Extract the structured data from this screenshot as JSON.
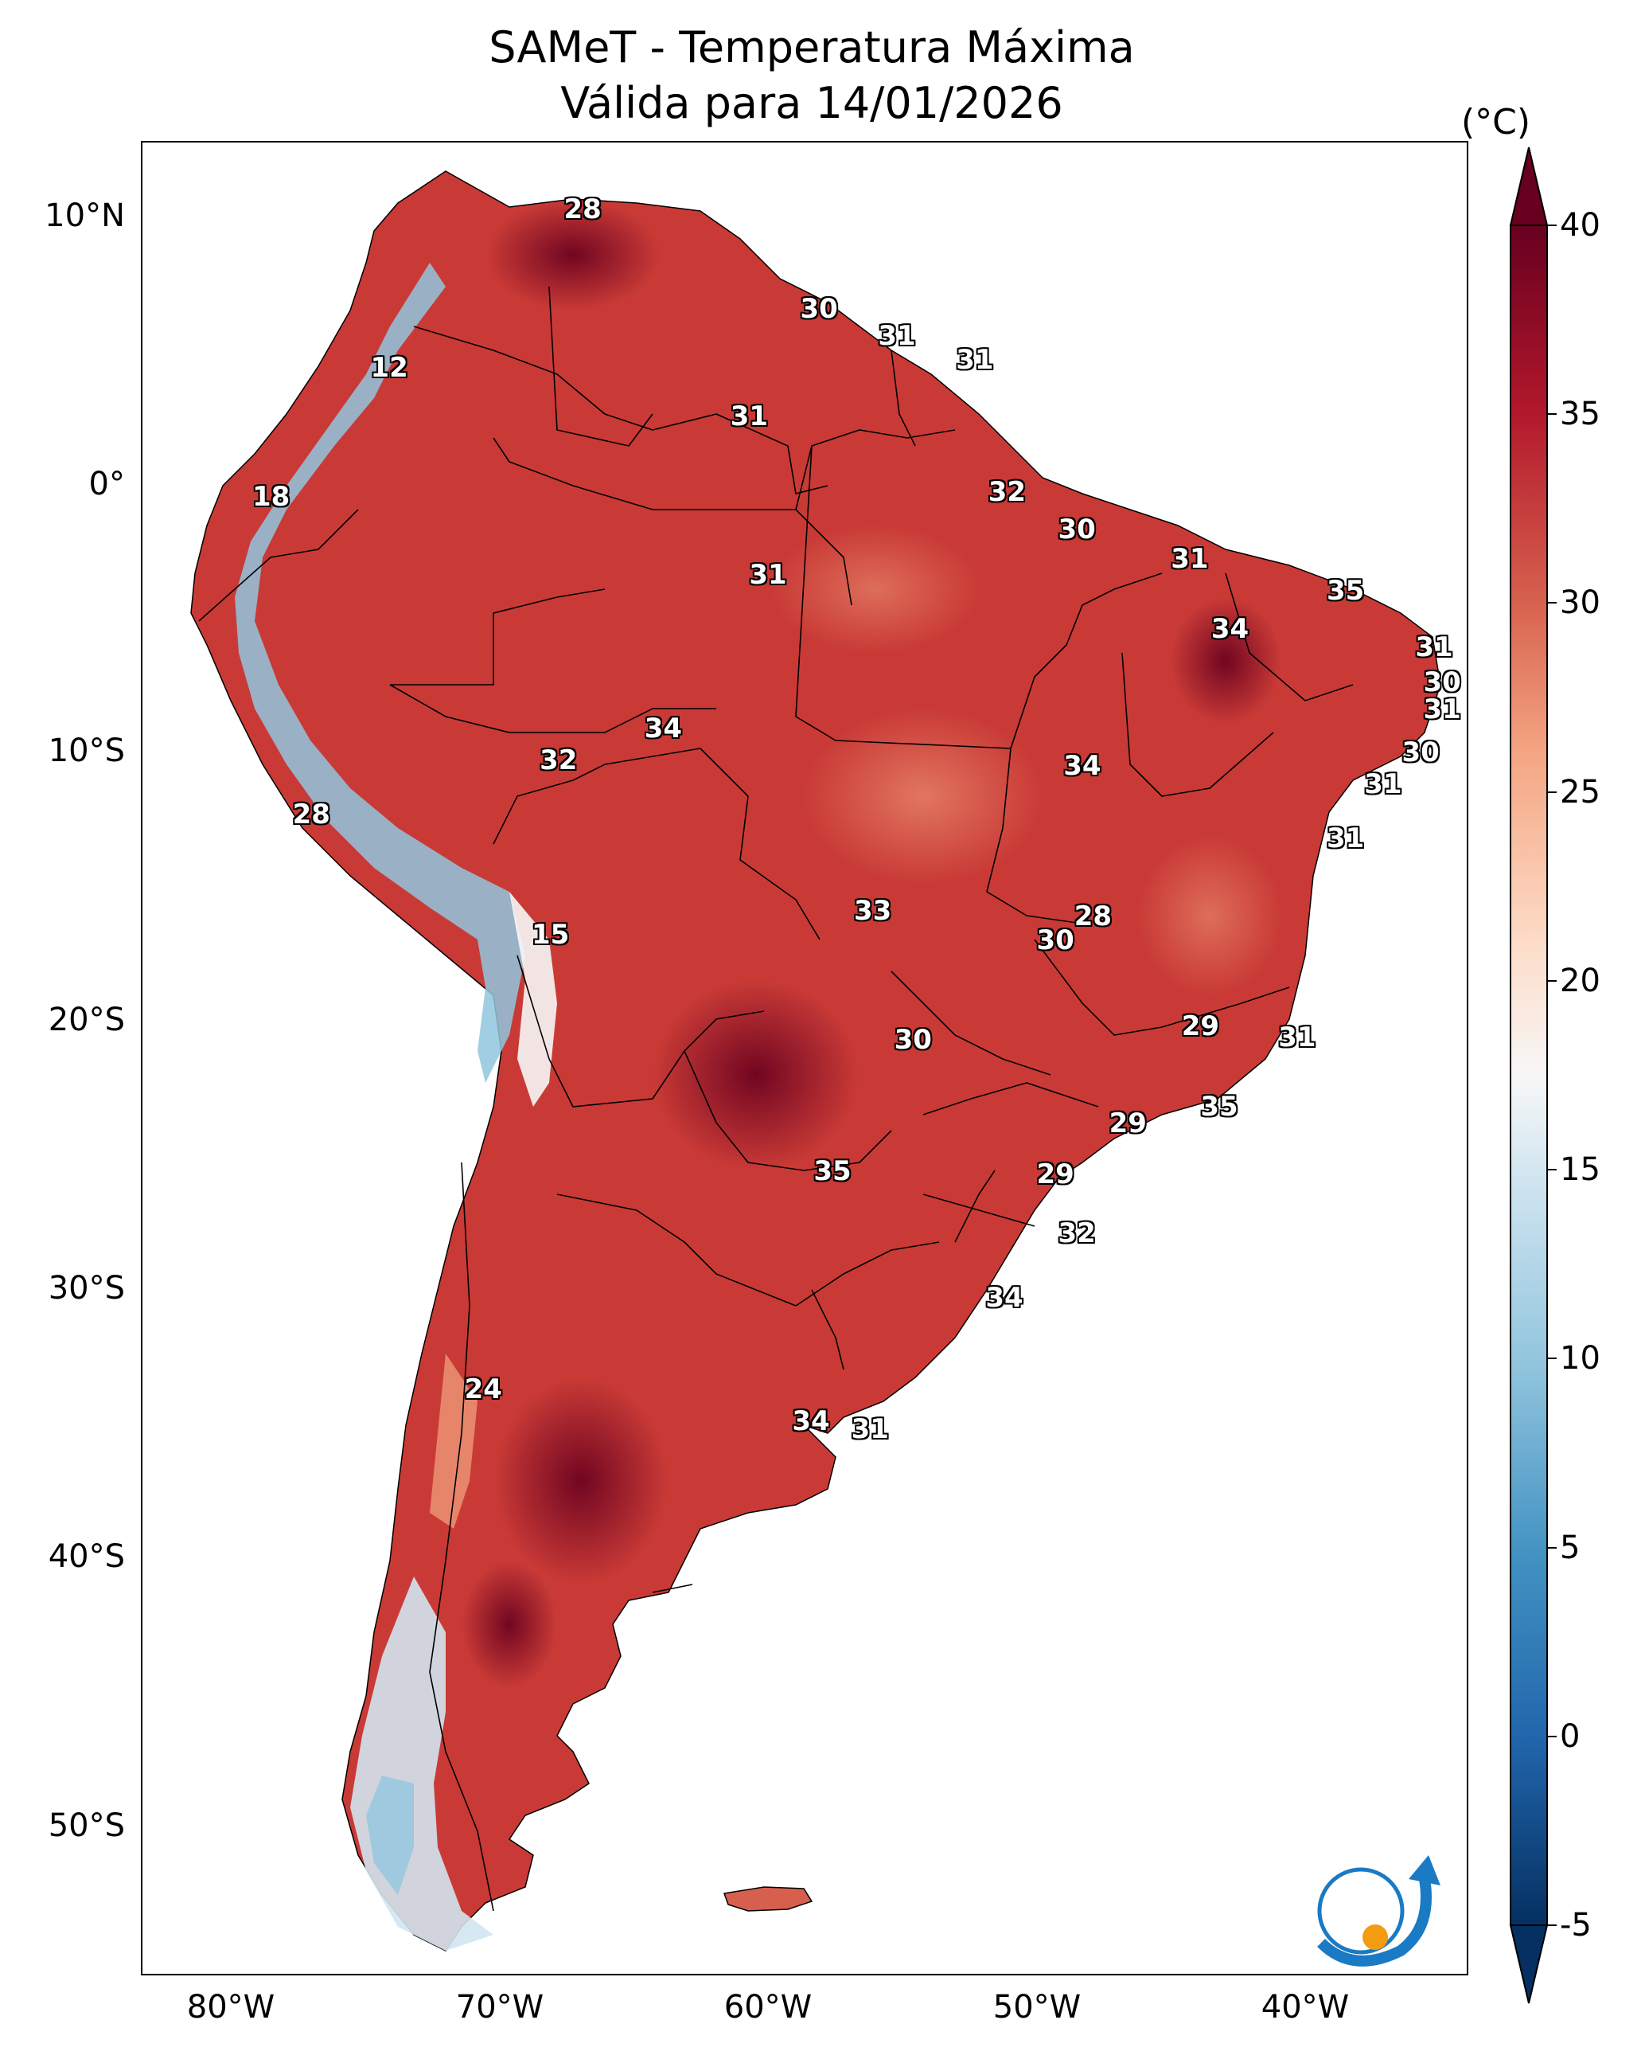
{
  "title": {
    "line1": "SAMeT - Temperatura Máxima",
    "line2": "Válida para 14/01/2026"
  },
  "axes": {
    "lat_labels": [
      "10°N",
      "0°",
      "10°S",
      "20°S",
      "30°S",
      "40°S",
      "50°S"
    ],
    "lon_labels": [
      "80°W",
      "70°W",
      "60°W",
      "50°W",
      "40°W"
    ]
  },
  "colorbar": {
    "unit": "(°C)",
    "range": [
      -5,
      40
    ],
    "ticks": [
      "40",
      "35",
      "30",
      "25",
      "20",
      "15",
      "10",
      "5",
      "0",
      "-5"
    ],
    "colors": [
      "#67001f",
      "#b2182b",
      "#d6604d",
      "#f4a582",
      "#fddbc7",
      "#f7f7f7",
      "#d1e5f0",
      "#92c5de",
      "#4393c3",
      "#2166ac",
      "#053061"
    ]
  },
  "map": {
    "land_color_hot": "#b2182b",
    "land_color_warm": "#d6604d",
    "land_color_andes_cold": "#92c5de",
    "border_color": "#000000"
  },
  "stations": [
    {
      "value": "28",
      "lon": -66.9,
      "lat": 10.5
    },
    {
      "value": "12",
      "lon": -74.1,
      "lat": 4.6
    },
    {
      "value": "18",
      "lon": -78.5,
      "lat": -0.2
    },
    {
      "value": "28",
      "lon": -77.0,
      "lat": -12.0
    },
    {
      "value": "15",
      "lon": -68.1,
      "lat": -16.5
    },
    {
      "value": "24",
      "lon": -70.6,
      "lat": -33.4
    },
    {
      "value": "30",
      "lon": -58.1,
      "lat": 6.8
    },
    {
      "value": "31",
      "lon": -55.2,
      "lat": 5.8
    },
    {
      "value": "31",
      "lon": -52.3,
      "lat": 4.9
    },
    {
      "value": "31",
      "lon": -60.7,
      "lat": 2.8
    },
    {
      "value": "32",
      "lon": -51.1,
      "lat": 0.0
    },
    {
      "value": "30",
      "lon": -48.5,
      "lat": -1.4
    },
    {
      "value": "31",
      "lon": -44.3,
      "lat": -2.5
    },
    {
      "value": "35",
      "lon": -38.5,
      "lat": -3.7
    },
    {
      "value": "34",
      "lon": -42.8,
      "lat": -5.1
    },
    {
      "value": "31",
      "lon": -60.0,
      "lat": -3.1
    },
    {
      "value": "31",
      "lon": -35.2,
      "lat": -5.8
    },
    {
      "value": "30",
      "lon": -34.9,
      "lat": -7.1
    },
    {
      "value": "31",
      "lon": -34.9,
      "lat": -8.1
    },
    {
      "value": "30",
      "lon": -35.7,
      "lat": -9.7
    },
    {
      "value": "31",
      "lon": -37.1,
      "lat": -10.9
    },
    {
      "value": "31",
      "lon": -38.5,
      "lat": -12.9
    },
    {
      "value": "34",
      "lon": -63.9,
      "lat": -8.8
    },
    {
      "value": "32",
      "lon": -67.8,
      "lat": -10.0
    },
    {
      "value": "34",
      "lon": -48.3,
      "lat": -10.2
    },
    {
      "value": "33",
      "lon": -56.1,
      "lat": -15.6
    },
    {
      "value": "28",
      "lon": -47.9,
      "lat": -15.8
    },
    {
      "value": "30",
      "lon": -49.3,
      "lat": -16.7
    },
    {
      "value": "29",
      "lon": -43.9,
      "lat": -19.9
    },
    {
      "value": "31",
      "lon": -40.3,
      "lat": -20.3
    },
    {
      "value": "30",
      "lon": -54.6,
      "lat": -20.4
    },
    {
      "value": "35",
      "lon": -43.2,
      "lat": -22.9
    },
    {
      "value": "29",
      "lon": -46.6,
      "lat": -23.5
    },
    {
      "value": "35",
      "lon": -57.6,
      "lat": -25.3
    },
    {
      "value": "29",
      "lon": -49.3,
      "lat": -25.4
    },
    {
      "value": "32",
      "lon": -48.5,
      "lat": -27.6
    },
    {
      "value": "34",
      "lon": -51.2,
      "lat": -30.0
    },
    {
      "value": "34",
      "lon": -58.4,
      "lat": -34.6
    },
    {
      "value": "31",
      "lon": -56.2,
      "lat": -34.9
    }
  ]
}
